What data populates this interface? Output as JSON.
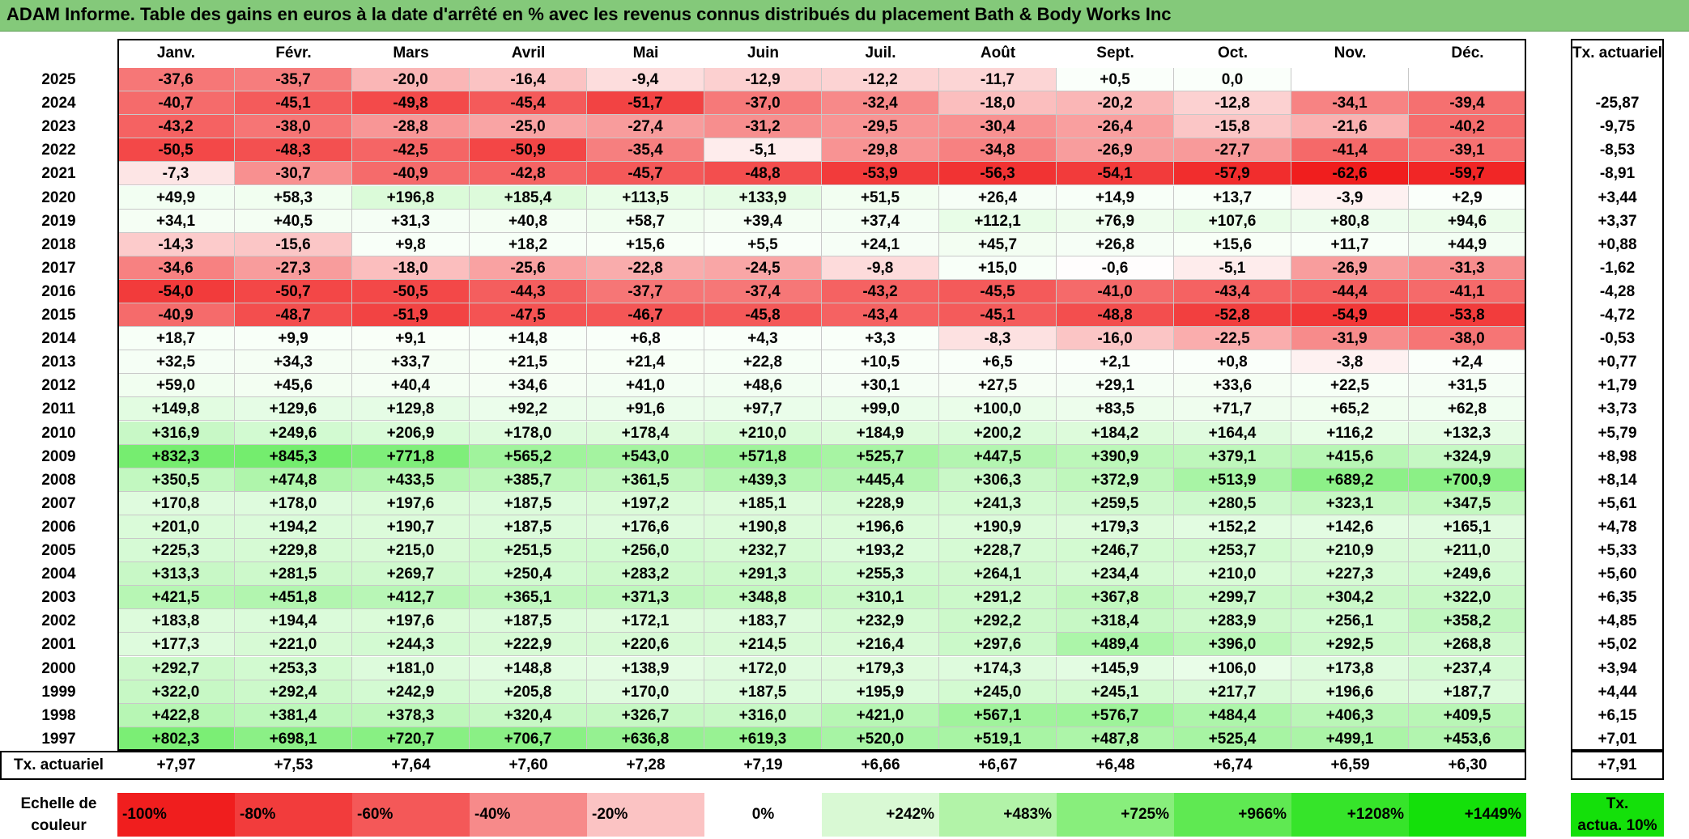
{
  "title": "ADAM Informe. Table des gains en euros à la date d'arrêté en % avec les revenus connus distribués du placement Bath & Body Works Inc",
  "months": [
    "Janv.",
    "Févr.",
    "Mars",
    "Avril",
    "Mai",
    "Juin",
    "Juil.",
    "Août",
    "Sept.",
    "Oct.",
    "Nov.",
    "Déc."
  ],
  "rate_header": "Tx. actuariel",
  "rows": [
    {
      "year": "2025",
      "vals": [
        "-37,6",
        "-35,7",
        "-20,0",
        "-16,4",
        "-9,4",
        "-12,9",
        "-12,2",
        "-11,7",
        "+0,5",
        "0,0",
        "",
        ""
      ],
      "rate": ""
    },
    {
      "year": "2024",
      "vals": [
        "-40,7",
        "-45,1",
        "-49,8",
        "-45,4",
        "-51,7",
        "-37,0",
        "-32,4",
        "-18,0",
        "-20,2",
        "-12,8",
        "-34,1",
        "-39,4"
      ],
      "rate": "-25,87"
    },
    {
      "year": "2023",
      "vals": [
        "-43,2",
        "-38,0",
        "-28,8",
        "-25,0",
        "-27,4",
        "-31,2",
        "-29,5",
        "-30,4",
        "-26,4",
        "-15,8",
        "-21,6",
        "-40,2"
      ],
      "rate": "-9,75"
    },
    {
      "year": "2022",
      "vals": [
        "-50,5",
        "-48,3",
        "-42,5",
        "-50,9",
        "-35,4",
        "-5,1",
        "-29,8",
        "-34,8",
        "-26,9",
        "-27,7",
        "-41,4",
        "-39,1"
      ],
      "rate": "-8,53"
    },
    {
      "year": "2021",
      "vals": [
        "-7,3",
        "-30,7",
        "-40,9",
        "-42,8",
        "-45,7",
        "-48,8",
        "-53,9",
        "-56,3",
        "-54,1",
        "-57,9",
        "-62,6",
        "-59,7"
      ],
      "rate": "-8,91"
    },
    {
      "year": "2020",
      "vals": [
        "+49,9",
        "+58,3",
        "+196,8",
        "+185,4",
        "+113,5",
        "+133,9",
        "+51,5",
        "+26,4",
        "+14,9",
        "+13,7",
        "-3,9",
        "+2,9"
      ],
      "rate": "+3,44"
    },
    {
      "year": "2019",
      "vals": [
        "+34,1",
        "+40,5",
        "+31,3",
        "+40,8",
        "+58,7",
        "+39,4",
        "+37,4",
        "+112,1",
        "+76,9",
        "+107,6",
        "+80,8",
        "+94,6"
      ],
      "rate": "+3,37"
    },
    {
      "year": "2018",
      "vals": [
        "-14,3",
        "-15,6",
        "+9,8",
        "+18,2",
        "+15,6",
        "+5,5",
        "+24,1",
        "+45,7",
        "+26,8",
        "+15,6",
        "+11,7",
        "+44,9"
      ],
      "rate": "+0,88"
    },
    {
      "year": "2017",
      "vals": [
        "-34,6",
        "-27,3",
        "-18,0",
        "-25,6",
        "-22,8",
        "-24,5",
        "-9,8",
        "+15,0",
        "-0,6",
        "-5,1",
        "-26,9",
        "-31,3"
      ],
      "rate": "-1,62"
    },
    {
      "year": "2016",
      "vals": [
        "-54,0",
        "-50,7",
        "-50,5",
        "-44,3",
        "-37,7",
        "-37,4",
        "-43,2",
        "-45,5",
        "-41,0",
        "-43,4",
        "-44,4",
        "-41,1"
      ],
      "rate": "-4,28"
    },
    {
      "year": "2015",
      "vals": [
        "-40,9",
        "-48,7",
        "-51,9",
        "-47,5",
        "-46,7",
        "-45,8",
        "-43,4",
        "-45,1",
        "-48,8",
        "-52,8",
        "-54,9",
        "-53,8"
      ],
      "rate": "-4,72"
    },
    {
      "year": "2014",
      "vals": [
        "+18,7",
        "+9,9",
        "+9,1",
        "+14,8",
        "+6,8",
        "+4,3",
        "+3,3",
        "-8,3",
        "-16,0",
        "-22,5",
        "-31,9",
        "-38,0"
      ],
      "rate": "-0,53"
    },
    {
      "year": "2013",
      "vals": [
        "+32,5",
        "+34,3",
        "+33,7",
        "+21,5",
        "+21,4",
        "+22,8",
        "+10,5",
        "+6,5",
        "+2,1",
        "+0,8",
        "-3,8",
        "+2,4"
      ],
      "rate": "+0,77"
    },
    {
      "year": "2012",
      "vals": [
        "+59,0",
        "+45,6",
        "+40,4",
        "+34,6",
        "+41,0",
        "+48,6",
        "+30,1",
        "+27,5",
        "+29,1",
        "+33,6",
        "+22,5",
        "+31,5"
      ],
      "rate": "+1,79"
    },
    {
      "year": "2011",
      "vals": [
        "+149,8",
        "+129,6",
        "+129,8",
        "+92,2",
        "+91,6",
        "+97,7",
        "+99,0",
        "+100,0",
        "+83,5",
        "+71,7",
        "+65,2",
        "+62,8"
      ],
      "rate": "+3,73"
    },
    {
      "year": "2010",
      "vals": [
        "+316,9",
        "+249,6",
        "+206,9",
        "+178,0",
        "+178,4",
        "+210,0",
        "+184,9",
        "+200,2",
        "+184,2",
        "+164,4",
        "+116,2",
        "+132,3"
      ],
      "rate": "+5,79"
    },
    {
      "year": "2009",
      "vals": [
        "+832,3",
        "+845,3",
        "+771,8",
        "+565,2",
        "+543,0",
        "+571,8",
        "+525,7",
        "+447,5",
        "+390,9",
        "+379,1",
        "+415,6",
        "+324,9"
      ],
      "rate": "+8,98"
    },
    {
      "year": "2008",
      "vals": [
        "+350,5",
        "+474,8",
        "+433,5",
        "+385,7",
        "+361,5",
        "+439,3",
        "+445,4",
        "+306,3",
        "+372,9",
        "+513,9",
        "+689,2",
        "+700,9"
      ],
      "rate": "+8,14"
    },
    {
      "year": "2007",
      "vals": [
        "+170,8",
        "+178,0",
        "+197,6",
        "+187,5",
        "+197,2",
        "+185,1",
        "+228,9",
        "+241,3",
        "+259,5",
        "+280,5",
        "+323,1",
        "+347,5"
      ],
      "rate": "+5,61"
    },
    {
      "year": "2006",
      "vals": [
        "+201,0",
        "+194,2",
        "+190,7",
        "+187,5",
        "+176,6",
        "+190,8",
        "+196,6",
        "+190,9",
        "+179,3",
        "+152,2",
        "+142,6",
        "+165,1"
      ],
      "rate": "+4,78"
    },
    {
      "year": "2005",
      "vals": [
        "+225,3",
        "+229,8",
        "+215,0",
        "+251,5",
        "+256,0",
        "+232,7",
        "+193,2",
        "+228,7",
        "+246,7",
        "+253,7",
        "+210,9",
        "+211,0"
      ],
      "rate": "+5,33"
    },
    {
      "year": "2004",
      "vals": [
        "+313,3",
        "+281,5",
        "+269,7",
        "+250,4",
        "+283,2",
        "+291,3",
        "+255,3",
        "+264,1",
        "+234,4",
        "+210,0",
        "+227,3",
        "+249,6"
      ],
      "rate": "+5,60"
    },
    {
      "year": "2003",
      "vals": [
        "+421,5",
        "+451,8",
        "+412,7",
        "+365,1",
        "+371,3",
        "+348,8",
        "+310,1",
        "+291,2",
        "+367,8",
        "+299,7",
        "+304,2",
        "+322,0"
      ],
      "rate": "+6,35"
    },
    {
      "year": "2002",
      "vals": [
        "+183,8",
        "+194,4",
        "+197,6",
        "+187,5",
        "+172,1",
        "+183,7",
        "+232,9",
        "+292,2",
        "+318,4",
        "+283,9",
        "+256,1",
        "+358,2"
      ],
      "rate": "+4,85"
    },
    {
      "year": "2001",
      "vals": [
        "+177,3",
        "+221,0",
        "+244,3",
        "+222,9",
        "+220,6",
        "+214,5",
        "+216,4",
        "+297,6",
        "+489,4",
        "+396,0",
        "+292,5",
        "+268,8"
      ],
      "rate": "+5,02"
    },
    {
      "year": "2000",
      "vals": [
        "+292,7",
        "+253,3",
        "+181,0",
        "+148,8",
        "+138,9",
        "+172,0",
        "+179,3",
        "+174,3",
        "+145,9",
        "+106,0",
        "+173,8",
        "+237,4"
      ],
      "rate": "+3,94"
    },
    {
      "year": "1999",
      "vals": [
        "+322,0",
        "+292,4",
        "+242,9",
        "+205,8",
        "+170,0",
        "+187,5",
        "+195,9",
        "+245,0",
        "+245,1",
        "+217,7",
        "+196,6",
        "+187,7"
      ],
      "rate": "+4,44"
    },
    {
      "year": "1998",
      "vals": [
        "+422,8",
        "+381,4",
        "+378,3",
        "+320,4",
        "+326,7",
        "+316,0",
        "+421,0",
        "+567,1",
        "+576,7",
        "+484,4",
        "+406,3",
        "+409,5"
      ],
      "rate": "+6,15"
    },
    {
      "year": "1997",
      "vals": [
        "+802,3",
        "+698,1",
        "+720,7",
        "+706,7",
        "+636,8",
        "+619,3",
        "+520,0",
        "+519,1",
        "+487,8",
        "+525,4",
        "+499,1",
        "+453,6"
      ],
      "rate": "+7,01"
    }
  ],
  "footer": {
    "label": "Tx. actuariel",
    "vals": [
      "+7,97",
      "+7,53",
      "+7,64",
      "+7,60",
      "+7,28",
      "+7,19",
      "+6,66",
      "+6,67",
      "+6,48",
      "+6,74",
      "+6,59",
      "+6,30"
    ],
    "total": "+7,91"
  },
  "legend": {
    "label_line1": "Echelle de",
    "label_line2": "couleur",
    "items": [
      {
        "text": "-100%",
        "color": "#f01e1e",
        "align": "left"
      },
      {
        "text": "-80%",
        "color": "#f23c3c",
        "align": "left"
      },
      {
        "text": "-60%",
        "color": "#f45858",
        "align": "left"
      },
      {
        "text": "-40%",
        "color": "#f78a8a",
        "align": "left"
      },
      {
        "text": "-20%",
        "color": "#fbc3c3",
        "align": "left"
      },
      {
        "text": "0%",
        "color": "#ffffff",
        "align": "center"
      },
      {
        "text": "+242%",
        "color": "#d9f9d4",
        "align": "right"
      },
      {
        "text": "+483%",
        "color": "#b2f3a8",
        "align": "right"
      },
      {
        "text": "+725%",
        "color": "#88ee7c",
        "align": "right"
      },
      {
        "text": "+966%",
        "color": "#5fe952",
        "align": "right"
      },
      {
        "text": "+1208%",
        "color": "#36e42a",
        "align": "right"
      },
      {
        "text": "+1449%",
        "color": "#14e00a",
        "align": "right"
      }
    ],
    "box_line1": "Tx.",
    "box_line2": "actua. 10%",
    "box_color": "#14e00a"
  }
}
